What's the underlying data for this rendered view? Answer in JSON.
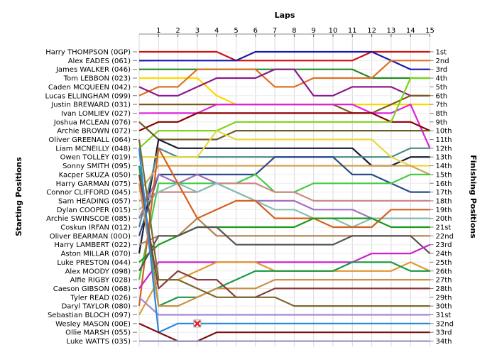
{
  "chart_data": {
    "type": "line",
    "title": "",
    "xlabel": "Laps",
    "ylabel_left": "Starting Positions",
    "ylabel_right": "Finishing Positions",
    "laps": [
      1,
      2,
      3,
      4,
      5,
      6,
      7,
      8,
      9,
      10,
      11,
      12,
      13,
      14,
      15
    ],
    "drivers": [
      {
        "name": "Harry THOMPSON (0GP)",
        "color": "#cc1111",
        "positions": [
          1,
          1,
          1,
          1,
          1,
          2,
          2,
          2,
          2,
          2,
          2,
          2,
          1,
          1,
          1,
          1
        ]
      },
      {
        "name": "Alex EADES (061)",
        "color": "#1a1aaa",
        "positions": [
          2,
          2,
          2,
          2,
          2,
          2,
          1,
          1,
          1,
          1,
          1,
          1,
          1,
          2,
          3,
          3
        ]
      },
      {
        "name": "James WALKER (046)",
        "color": "#228b22",
        "positions": [
          3,
          3,
          3,
          3,
          3,
          3,
          3,
          3,
          3,
          3,
          3,
          3,
          4,
          4,
          4,
          4
        ]
      },
      {
        "name": "Tom LEBBON (023)",
        "color": "#ffd700",
        "positions": [
          4,
          4,
          4,
          4,
          6,
          7,
          7,
          7,
          7,
          7,
          7,
          7,
          7,
          7,
          7,
          7
        ]
      },
      {
        "name": "Caden MCQUEEN (042)",
        "color": "#e07020",
        "positions": [
          6,
          5,
          5,
          3,
          3,
          3,
          3,
          5,
          5,
          4,
          4,
          4,
          4,
          2,
          2,
          2
        ]
      },
      {
        "name": "Lucas ELLINGHAM (099)",
        "color": "#8b1a8b",
        "positions": [
          5,
          6,
          6,
          5,
          4,
          4,
          4,
          3,
          3,
          6,
          6,
          5,
          5,
          5,
          6,
          6
        ]
      },
      {
        "name": "Justin BREWARD (031)",
        "color": "#7a5a1a",
        "positions": [
          7,
          7,
          7,
          7,
          7,
          7,
          7,
          7,
          7,
          7,
          7,
          8,
          8,
          7,
          6,
          6
        ]
      },
      {
        "name": "Ivan LOMLIEV (027)",
        "color": "#dd22dd",
        "positions": [
          8,
          8,
          8,
          8,
          7,
          7,
          7,
          7,
          7,
          7,
          7,
          7,
          8,
          8,
          7,
          12
        ]
      },
      {
        "name": "Joshua MCLEAN (076)",
        "color": "#8b0000",
        "positions": [
          10,
          9,
          9,
          8,
          8,
          8,
          8,
          8,
          8,
          8,
          8,
          8,
          8,
          9,
          9,
          10
        ]
      },
      {
        "name": "Archie BROWN (072)",
        "color": "#7cd41a",
        "positions": [
          12,
          10,
          10,
          10,
          10,
          9,
          9,
          9,
          9,
          9,
          9,
          9,
          9,
          9,
          4,
          4
        ]
      },
      {
        "name": "Oliver GREENALL (064)",
        "color": "#6b5b2a",
        "positions": [
          9,
          11,
          11,
          11,
          11,
          10,
          10,
          10,
          10,
          10,
          10,
          10,
          10,
          10,
          10,
          10
        ]
      },
      {
        "name": "Liam MCNEILLY (048)",
        "color": "#1a1a3a",
        "positions": [
          24,
          11,
          12,
          12,
          12,
          12,
          12,
          12,
          12,
          12,
          12,
          12,
          14,
          14,
          13,
          13
        ]
      },
      {
        "name": "Owen TOLLEY (019)",
        "color": "#4a8a8a",
        "positions": [
          21,
          12,
          13,
          13,
          13,
          13,
          13,
          13,
          13,
          13,
          13,
          13,
          13,
          13,
          12,
          12
        ]
      },
      {
        "name": "Sonny SMITH (095)",
        "color": "#e8d840",
        "positions": [
          13,
          13,
          13,
          13,
          10,
          11,
          11,
          11,
          11,
          11,
          11,
          11,
          11,
          13,
          14,
          14
        ]
      },
      {
        "name": "Kacper SKUZA (050)",
        "color": "#d4a050",
        "positions": [
          17,
          14,
          14,
          14,
          14,
          14,
          14,
          14,
          14,
          14,
          14,
          14,
          14,
          14,
          14,
          15
        ]
      },
      {
        "name": "Harry GARMAN (075)",
        "color": "#2a4a8a",
        "positions": [
          22,
          15,
          15,
          15,
          15,
          15,
          15,
          13,
          13,
          13,
          13,
          15,
          15,
          16,
          17,
          17
        ]
      },
      {
        "name": "Connor CLIFFORD (045)",
        "color": "#44cc44",
        "positions": [
          27,
          16,
          16,
          16,
          16,
          16,
          15,
          17,
          17,
          16,
          16,
          16,
          16,
          16,
          15,
          15
        ]
      },
      {
        "name": "Sam HEADING (057)",
        "color": "#cc8888",
        "positions": [
          18,
          17,
          17,
          17,
          16,
          16,
          16,
          17,
          17,
          18,
          18,
          18,
          18,
          18,
          18,
          18
        ]
      },
      {
        "name": "Dylan COOPER (015)",
        "color": "#a070c0",
        "positions": [
          20,
          15,
          16,
          15,
          16,
          17,
          18,
          18,
          18,
          19,
          19,
          19,
          20,
          20,
          20,
          20
        ]
      },
      {
        "name": "Archie SWINSCOE (085)",
        "color": "#8abdb0",
        "positions": [
          19,
          17,
          16,
          17,
          16,
          17,
          18,
          19,
          19,
          20,
          20,
          21,
          20,
          20,
          20,
          20
        ]
      },
      {
        "name": "Coskun IRFAN (012)",
        "color": "#d46020",
        "positions": [
          30,
          12,
          16,
          20,
          19,
          18,
          18,
          20,
          20,
          20,
          21,
          21,
          21,
          19,
          19,
          19
        ]
      },
      {
        "name": "Oliver BEARMAN (00O)",
        "color": "#1a9a1a",
        "positions": [
          25,
          23,
          22,
          21,
          21,
          21,
          21,
          21,
          21,
          20,
          20,
          20,
          20,
          21,
          21,
          21
        ]
      },
      {
        "name": "Harry LAMBERT (022)",
        "color": "#b08050",
        "positions": [
          23,
          22,
          22,
          20,
          22,
          22,
          22,
          22,
          22,
          22,
          22,
          22,
          22,
          22,
          22,
          22
        ]
      },
      {
        "name": "Aston MILLAR (070)",
        "color": "#555555",
        "positions": [
          26,
          22,
          22,
          21,
          21,
          23,
          23,
          23,
          23,
          23,
          23,
          22,
          22,
          22,
          22,
          24
        ]
      },
      {
        "name": "Luke PRESTON (044)",
        "color": "#cc22cc",
        "positions": [
          28,
          25,
          25,
          25,
          25,
          25,
          25,
          25,
          25,
          25,
          25,
          25,
          24,
          24,
          24,
          23
        ]
      },
      {
        "name": "Alex MOODY (098)",
        "color": "#e09a30",
        "positions": [
          31,
          27,
          27,
          26,
          25,
          25,
          25,
          26,
          26,
          26,
          26,
          26,
          26,
          26,
          25,
          26
        ]
      },
      {
        "name": "Alfie RIGBY (028)",
        "color": "#1a9a44",
        "positions": [
          14,
          30,
          29,
          29,
          28,
          27,
          26,
          26,
          26,
          26,
          26,
          25,
          25,
          25,
          26,
          26
        ]
      },
      {
        "name": "Caeson GIBSON (068)",
        "color": "#c89048",
        "positions": [
          16,
          30,
          30,
          29,
          28,
          28,
          28,
          27,
          27,
          27,
          27,
          27,
          27,
          27,
          27,
          27
        ]
      },
      {
        "name": "Tyler READ (026)",
        "color": "#8b3a3a",
        "positions": [
          15,
          28,
          26,
          27,
          27,
          29,
          29,
          28,
          28,
          28,
          28,
          28,
          28,
          28,
          28,
          28
        ]
      },
      {
        "name": "Daryl TAYLOR (080)",
        "color": "#7a6a30",
        "positions": [
          11,
          27,
          27,
          28,
          29,
          29,
          29,
          29,
          30,
          30,
          30,
          30,
          30,
          30,
          30,
          30
        ]
      },
      {
        "name": "Sebastian BLOCH (097)",
        "color": "#a48ad8",
        "positions": [
          29,
          31,
          31,
          31,
          31,
          31,
          31,
          31,
          31,
          31,
          31,
          31,
          31,
          31,
          31,
          31
        ]
      },
      {
        "name": "Wesley MASON (00E)",
        "color": "#2a88dd",
        "positions": [
          12,
          33,
          32,
          32,
          32,
          32,
          32,
          32,
          32,
          32,
          32,
          32,
          32,
          32,
          32,
          32
        ]
      },
      {
        "name": "Ollie MARSH (055)",
        "color": "#7a1010",
        "positions": [
          32,
          33,
          34,
          34,
          33,
          33,
          33,
          33,
          33,
          33,
          33,
          33,
          33,
          33,
          33,
          33
        ]
      },
      {
        "name": "Luke WATTS (035)",
        "color": "#9a9aca",
        "positions": [
          34,
          34,
          34,
          34,
          34,
          34,
          34,
          34,
          34,
          34,
          34,
          34,
          34,
          34,
          34,
          34
        ]
      }
    ],
    "finishing_labels": [
      "1st",
      "2nd",
      "3rd",
      "4th",
      "5th",
      "6th",
      "7th",
      "8th",
      "9th",
      "10th",
      "11th",
      "12th",
      "13th",
      "14th",
      "15th",
      "16th",
      "17th",
      "18th",
      "19th",
      "20th",
      "21st",
      "22nd",
      "23rd",
      "24th",
      "25th",
      "26th",
      "27th",
      "28th",
      "29th",
      "30th",
      "31st",
      "32nd",
      "33rd",
      "34th"
    ],
    "markers": [
      {
        "driver": "Wesley MASON (00E)",
        "lap": 3,
        "position": 32,
        "type": "retired-x",
        "color": "#dd2222"
      }
    ],
    "grid": true
  }
}
